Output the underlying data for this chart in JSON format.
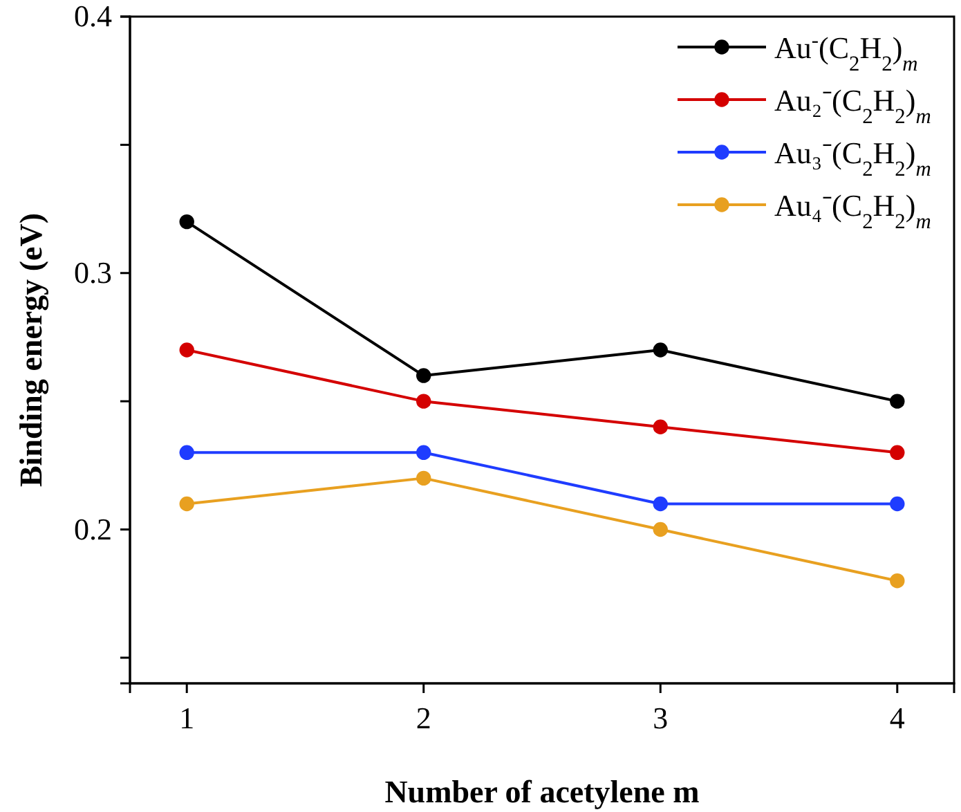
{
  "chart_data": {
    "type": "line",
    "xlabel": "Number of acetylene m",
    "ylabel": "Binding energy (eV)",
    "x": [
      1,
      2,
      3,
      4
    ],
    "xlim": [
      0.76,
      4.24
    ],
    "xticks": [
      1,
      2,
      3,
      4
    ],
    "ylim": [
      0.14,
      0.4
    ],
    "yticks": [
      {
        "value": 0.15,
        "label": null
      },
      0.2,
      {
        "value": 0.25,
        "label": null
      },
      0.3,
      {
        "value": 0.35,
        "label": null
      },
      0.4
    ],
    "marker": "circle",
    "line_style": "solid",
    "legend": "top right",
    "grid": false,
    "series": [
      {
        "name": "Au$^{-}$(C$_{2}$H$_{2}$)$_{m}$",
        "color": "#000000",
        "values": [
          0.32,
          0.26,
          0.27,
          0.25
        ]
      },
      {
        "name": "Au₂⁻(C$_{2}$H$_{2}$)$_{m}$",
        "color": "#d40000",
        "values": [
          0.27,
          0.25,
          0.24,
          0.23
        ]
      },
      {
        "name": "Au₃⁻(C$_{2}$H$_{2}$)$_{m}$",
        "color": "#1f3cff",
        "values": [
          0.23,
          0.23,
          0.21,
          0.21
        ]
      },
      {
        "name": "Au₄⁻(C$_{2}$H$_{2}$)$_{m}$",
        "color": "#e8a020",
        "values": [
          0.21,
          0.22,
          0.2,
          0.18
        ]
      }
    ]
  }
}
